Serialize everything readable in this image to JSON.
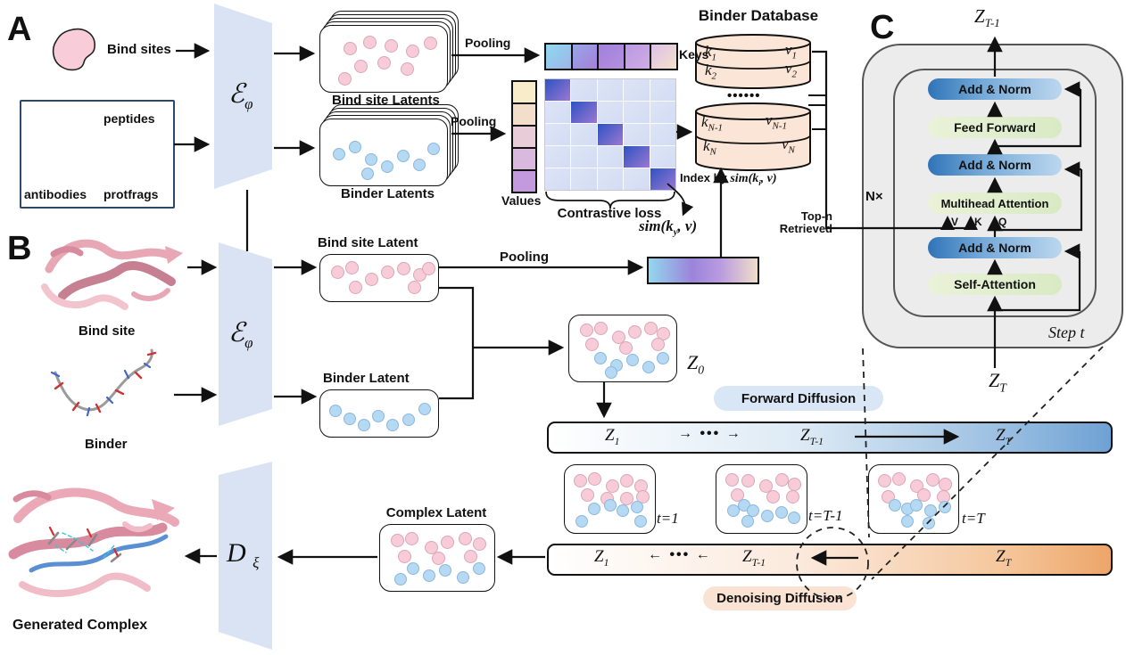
{
  "panels": {
    "a": "A",
    "b": "B",
    "c": "C"
  },
  "panel_a": {
    "bind_sites_label": "Bind sites",
    "binder_types": {
      "peptides": "peptides",
      "antibodies": "antibodies",
      "protfrags": "protfrags"
    },
    "encoder": {
      "symbol": "ℰ",
      "sub": "φ"
    },
    "bind_site_latents_label": "Bind site Latents",
    "binder_latents_label": "Binder Latents",
    "pooling_top": "Pooling",
    "pooling_bottom": "Pooling",
    "keys_label": "Keys",
    "values_label": "Values",
    "contrastive_loss_label": "Contrastive loss",
    "sim_ky": {
      "pre": "sim(k",
      "sub": "y",
      "post": ", v)"
    }
  },
  "database": {
    "title": "Binder Database",
    "rows_top": [
      {
        "k": "k",
        "ksub": "1",
        "v": "v",
        "vsub": "1"
      },
      {
        "k": "k",
        "ksub": "2",
        "v": "v",
        "vsub": "2"
      }
    ],
    "ellipsis": "••••••",
    "rows_bottom": [
      {
        "k": "k",
        "ksub": "N-1",
        "v": "v",
        "vsub": "N-1"
      },
      {
        "k": "k",
        "ksub": "N",
        "v": "v",
        "vsub": "N"
      }
    ],
    "index_by_prefix": "Index by ",
    "index_expr": {
      "pre": "sim(k",
      "sub": "i",
      "post": ", v)"
    },
    "top_n_line1": "Top-n",
    "top_n_line2": "Retrieved"
  },
  "panel_b": {
    "bind_site_label": "Bind site",
    "binder_label": "Binder",
    "encoder": {
      "symbol": "ℰ",
      "sub": "φ"
    },
    "bind_site_latent_label": "Bind site Latent",
    "binder_latent_label": "Binder Latent",
    "pooling": "Pooling",
    "z0": {
      "base": "Z",
      "sub": "0"
    }
  },
  "diffusion": {
    "forward_label": "Forward Diffusion",
    "denoising_label": "Denoising Diffusion",
    "forward_bar": {
      "z1": {
        "base": "Z",
        "sub": "1"
      },
      "arrow": "→",
      "dots": "•••",
      "zt1": {
        "base": "Z",
        "sub": "T-1"
      },
      "zt": {
        "base": "Z",
        "sub": "T"
      }
    },
    "denoise_bar": {
      "z1": {
        "base": "Z",
        "sub": "1"
      },
      "arrow": "←",
      "dots": "•••",
      "zt1": {
        "base": "Z",
        "sub": "T-1"
      },
      "zt": {
        "base": "Z",
        "sub": "T"
      }
    },
    "snapshots": [
      {
        "label": "t=1"
      },
      {
        "label": "t=T-1"
      },
      {
        "label": "t=T"
      }
    ]
  },
  "decoder": {
    "symbol": "D",
    "sub": "ξ",
    "complex_latent_label": "Complex Latent",
    "generated_complex_label": "Generated Complex"
  },
  "panel_c": {
    "zt_minus1": {
      "base": "Z",
      "sub": "T-1"
    },
    "zt": {
      "base": "Z",
      "sub": "T"
    },
    "blocks": {
      "add_norm": "Add & Norm",
      "feed_forward": "Feed Forward",
      "multihead": "Multihead Attention",
      "self_attention": "Self-Attention"
    },
    "vkq": [
      "V",
      "K",
      "Q"
    ],
    "n_times": "N×",
    "step_t": "Step t"
  },
  "colors": {
    "encoder_fill": "#dae3f3",
    "panel_c_fill": "#ececec",
    "db_fill": "#fbe5d6",
    "forward_pill_bg": "#d8e6f6",
    "denoise_pill_bg": "#fbe3d4",
    "keys_cells": [
      [
        "#8fd9ee",
        "#9fb4ea"
      ],
      [
        "#96a6e8",
        "#a67fd8"
      ],
      [
        "#a27fdd",
        "#b391de"
      ],
      [
        "#b99ae2",
        "#d0abe4"
      ],
      [
        "#dcc0e8",
        "#f3e2c9"
      ]
    ],
    "values_cells": [
      "#f8ecca",
      "#f3decb",
      "#e8cdd9",
      "#d9bade",
      "#c49ade"
    ],
    "matrix_diag": [
      "#2e52c2",
      "#9b79d2"
    ],
    "matrix_off": [
      "#dde4f6",
      "#d2dcf3"
    ],
    "pooled_bar": [
      "#93d7ee",
      "#9b84da",
      "#b79ae0",
      "#efddc8"
    ],
    "forward_bar": [
      "#ffffff",
      "#ddeaf5",
      "#6ea1d4"
    ],
    "denoise_bar": [
      "#ffffff",
      "#fbe9dc",
      "#eda569"
    ]
  }
}
